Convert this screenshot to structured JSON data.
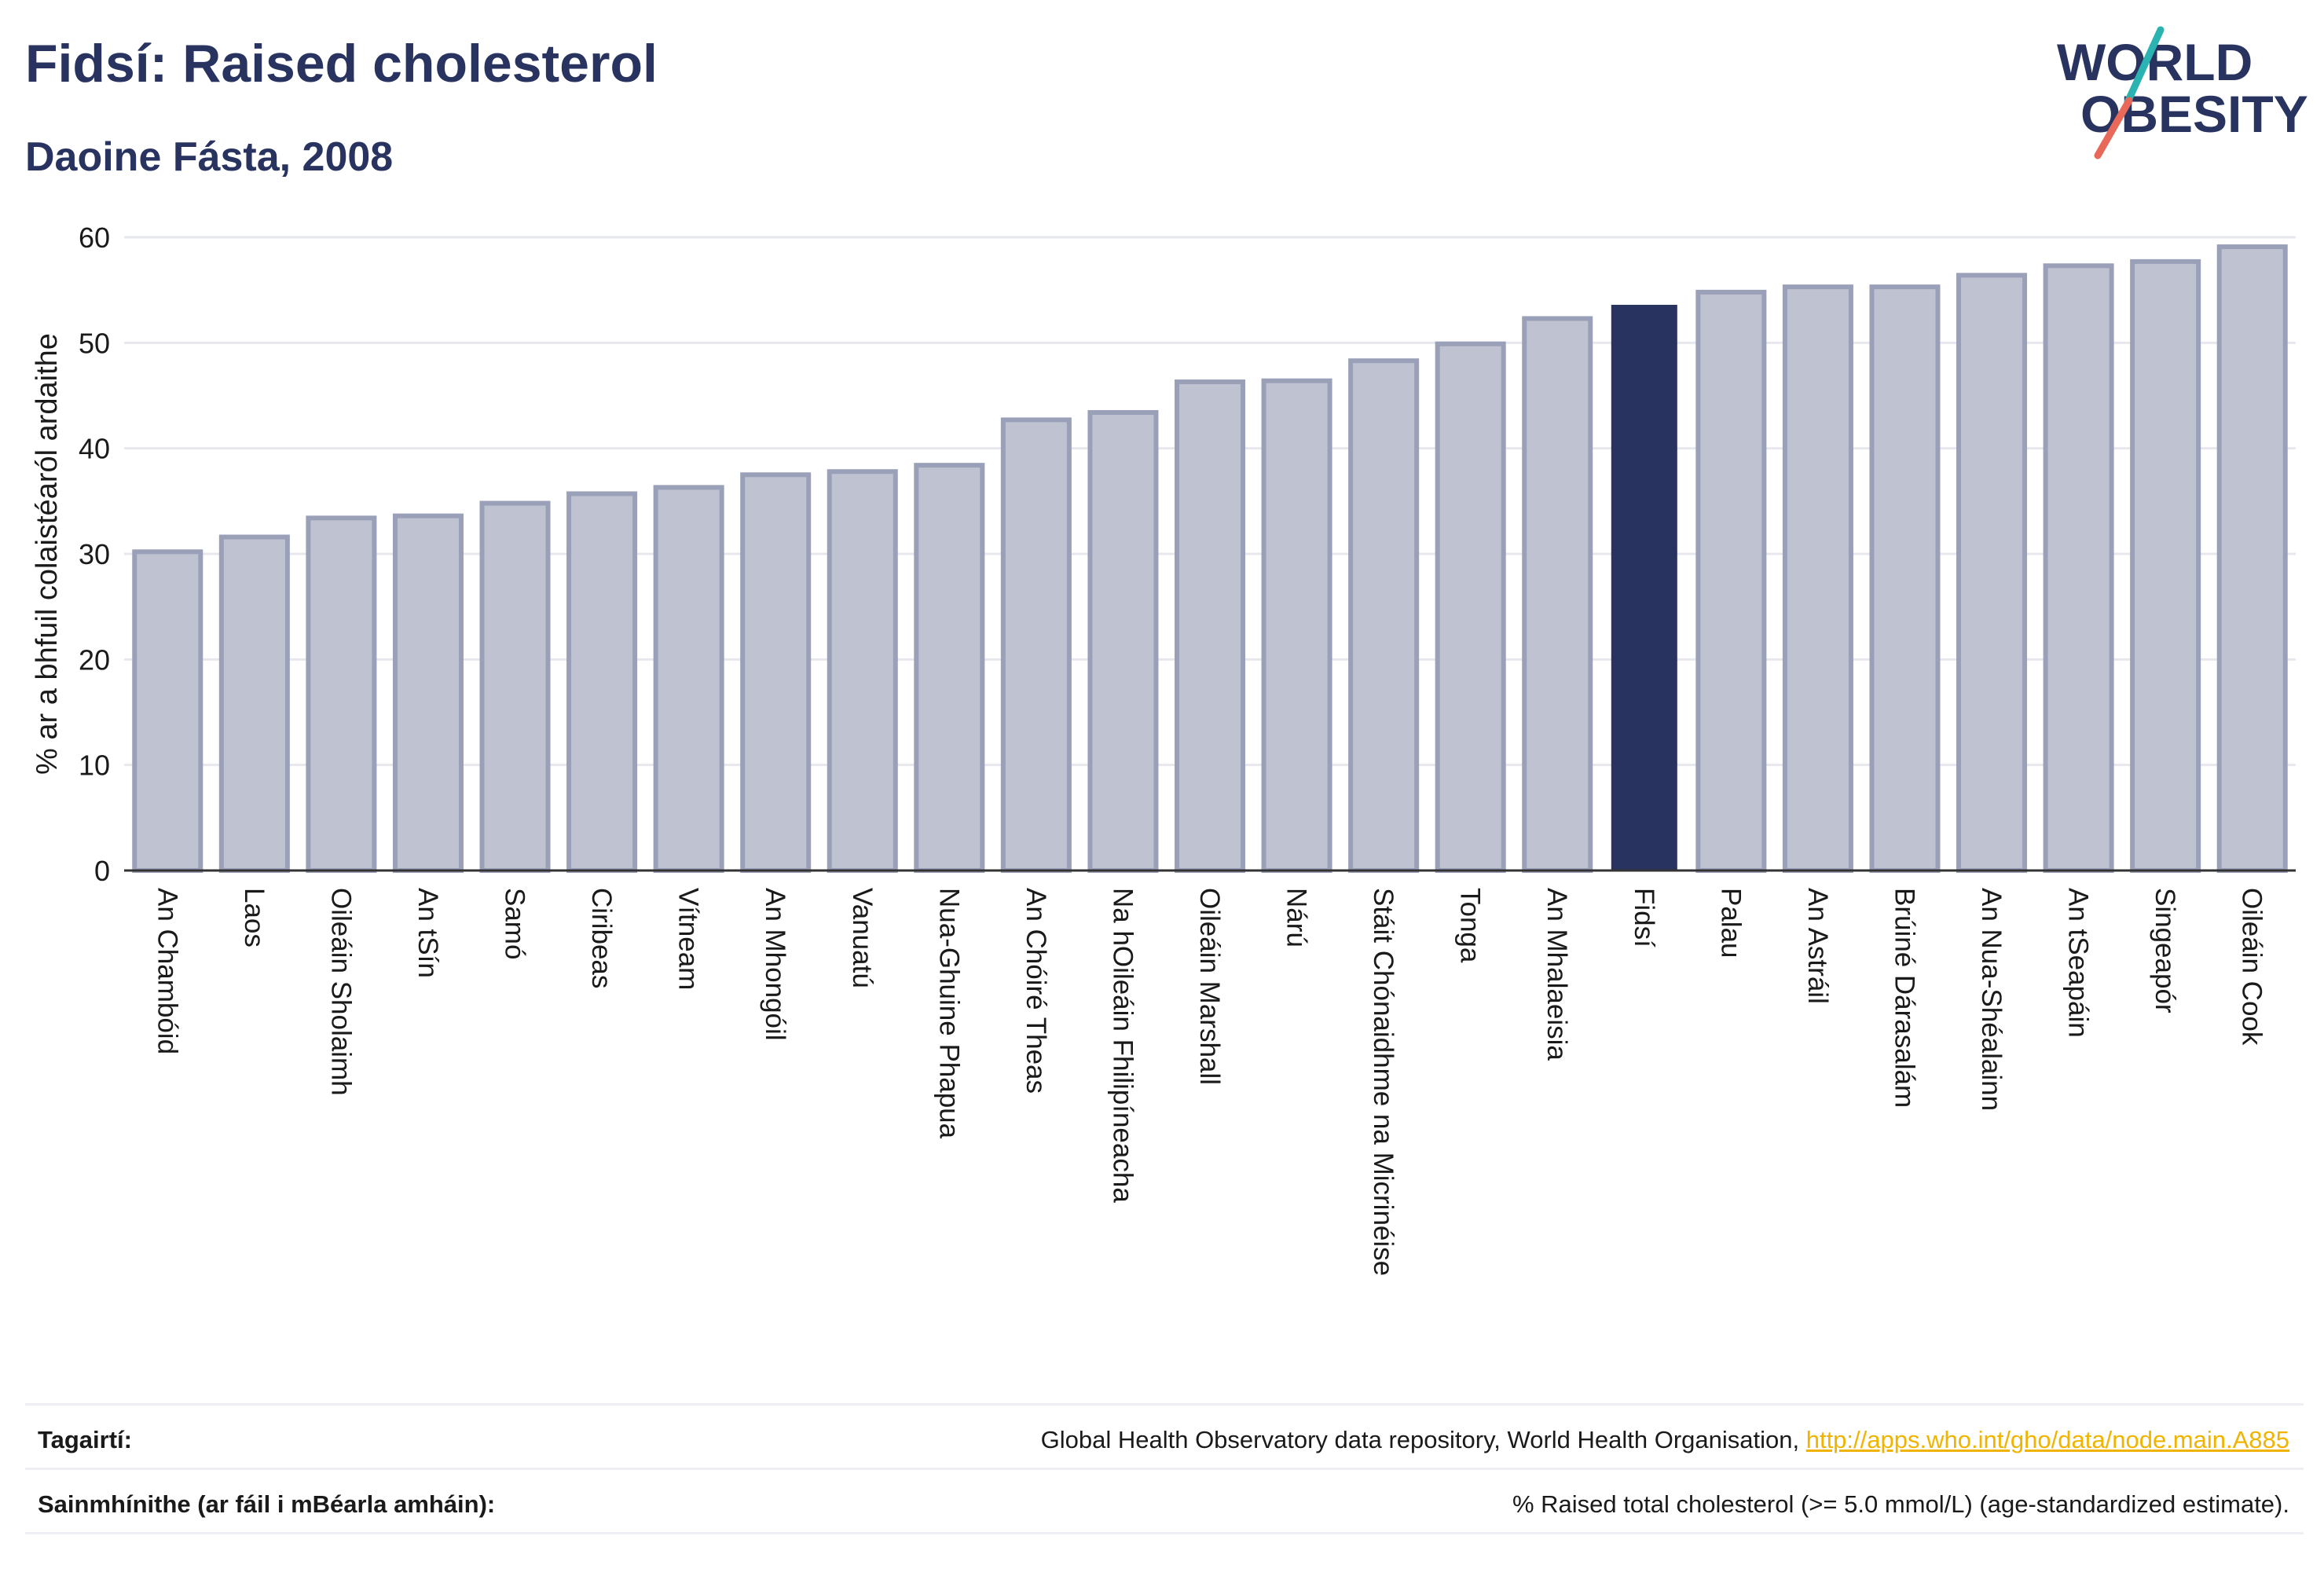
{
  "header": {
    "title": "Fidsí: Raised cholesterol",
    "subtitle": "Daoine Fásta, 2008"
  },
  "logo": {
    "line1": "WORLD",
    "line2": "OBESITY",
    "text_color": "#283360",
    "slash_teal": "#2ab3b1",
    "slash_red": "#e8685a"
  },
  "colors": {
    "bar": "#bfc3d1",
    "bar_edge": "#9aa0b8",
    "highlight": "#283360",
    "grid": "#e6e8ee",
    "axis": "#333333"
  },
  "chart_data": {
    "type": "bar",
    "ylabel": "% ar a bhfuil colaistéaról ardaithe",
    "xlabel": "",
    "ylim": [
      0,
      60
    ],
    "yticks": [
      0,
      10,
      20,
      30,
      40,
      50,
      60
    ],
    "grid": true,
    "highlight": "Fidsí",
    "categories": [
      "An Chambóid",
      "Laos",
      "Oileáin Sholaimh",
      "An tSín",
      "Samó",
      "Ciribeas",
      "Vítneam",
      "An Mhongóil",
      "Vanuatú",
      "Nua-Ghuine Phapua",
      "An Chóiré Theas",
      "Na hOileáin Fhilipíneacha",
      "Oileáin Marshall",
      "Nárú",
      "Stáit Chónaidhme na Micrinéise",
      "Tonga",
      "An Mhalaeisia",
      "Fidsí",
      "Palau",
      "An Astráil",
      "Brúiné Dárasalám",
      "An Nua-Shéalainn",
      "An tSeapáin",
      "Singeapór",
      "Oileáin Cook"
    ],
    "values": [
      30.2,
      31.6,
      33.4,
      33.6,
      34.8,
      35.7,
      36.3,
      37.5,
      37.8,
      38.4,
      42.7,
      43.4,
      46.3,
      46.4,
      48.3,
      49.9,
      52.3,
      53.6,
      54.8,
      55.3,
      55.3,
      56.4,
      57.3,
      57.7,
      59.1
    ]
  },
  "footer": {
    "references_label": "Tagairtí:",
    "references_text": "Global Health Observatory data repository, World Health Organisation, ",
    "references_link": "http://apps.who.int/gho/data/node.main.A885",
    "definitions_label": "Sainmhínithe (ar fáil i mBéarla amháin):",
    "definitions_text": "% Raised total cholesterol (>= 5.0 mmol/L) (age-standardized estimate)."
  }
}
